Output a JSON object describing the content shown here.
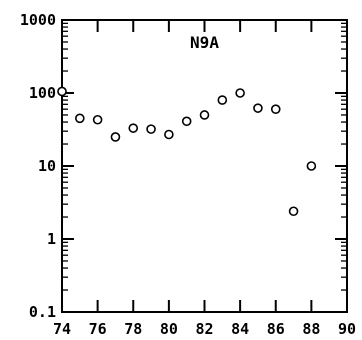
{
  "chart_data": {
    "type": "scatter",
    "title": "N9A",
    "xlabel": "",
    "ylabel": "",
    "x_scale": "linear",
    "y_scale": "log",
    "xlim": [
      74,
      90
    ],
    "ylim": [
      0.1,
      1000
    ],
    "x_ticks": [
      74,
      76,
      78,
      80,
      82,
      84,
      86,
      88,
      90
    ],
    "y_ticks": [
      0.1,
      1,
      10,
      100,
      1000
    ],
    "x_tick_labels": [
      "74",
      "76",
      "78",
      "80",
      "82",
      "84",
      "86",
      "88",
      "90"
    ],
    "y_tick_labels": [
      "0.1",
      "1",
      "10",
      "100",
      "1000"
    ],
    "grid": false,
    "marker": "open-circle",
    "points": [
      {
        "x": 74,
        "y": 105
      },
      {
        "x": 75,
        "y": 45
      },
      {
        "x": 76,
        "y": 43
      },
      {
        "x": 77,
        "y": 25
      },
      {
        "x": 78,
        "y": 33
      },
      {
        "x": 79,
        "y": 32
      },
      {
        "x": 80,
        "y": 27
      },
      {
        "x": 81,
        "y": 41
      },
      {
        "x": 82,
        "y": 50
      },
      {
        "x": 83,
        "y": 80
      },
      {
        "x": 84,
        "y": 100
      },
      {
        "x": 85,
        "y": 62
      },
      {
        "x": 86,
        "y": 60
      },
      {
        "x": 87,
        "y": 2.4
      },
      {
        "x": 88,
        "y": 10
      }
    ]
  }
}
